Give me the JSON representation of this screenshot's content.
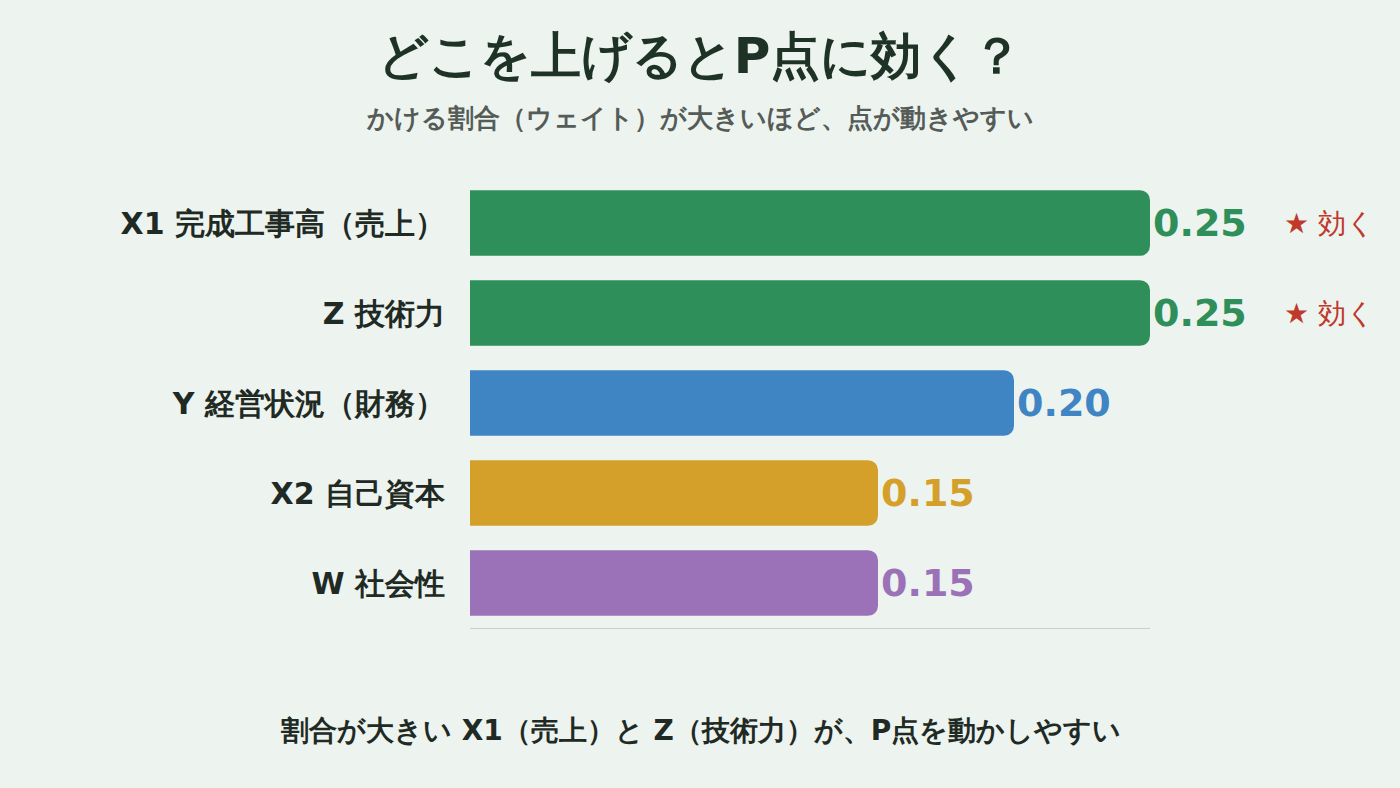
{
  "chart_data": {
    "type": "bar",
    "orientation": "horizontal",
    "title": "どこを上げるとP点に効く？",
    "subtitle": "かける割合（ウェイト）が大きいほど、点が動きやすい",
    "caption": "割合が大きい X1（売上）と Z（技術力）が、P点を動かしやすい",
    "categories": [
      "X1 完成工事高（売上）",
      "Z 技術力",
      "Y 経営状況（財務）",
      "X2 自己資本",
      "W 社会性"
    ],
    "values": [
      0.25,
      0.25,
      0.2,
      0.15,
      0.15
    ],
    "value_labels": [
      "0.25",
      "0.25",
      "0.20",
      "0.15",
      "0.15"
    ],
    "colors": [
      "#2e8f5a",
      "#2e8f5a",
      "#3f85c4",
      "#d4a02a",
      "#9b72b8"
    ],
    "data_labels": true,
    "tick_labels": "y",
    "grid": false,
    "xlim": [
      0,
      0.25
    ],
    "xticks": [],
    "annotations": [
      {
        "category": "X1 完成工事高（売上）",
        "text": "★ 効く"
      },
      {
        "category": "Z 技術力",
        "text": "★ 効く"
      }
    ]
  }
}
